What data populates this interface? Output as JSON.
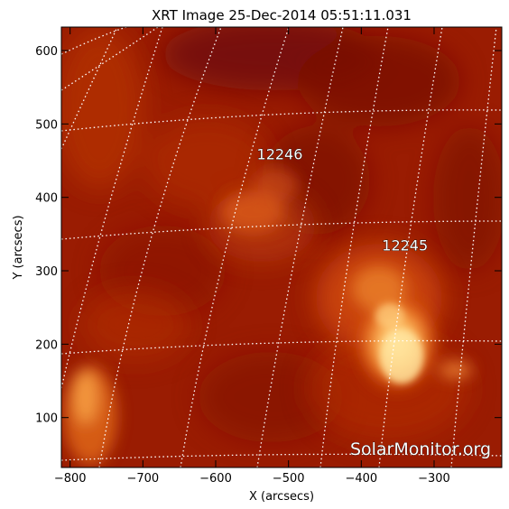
{
  "figure": {
    "title": "XRT Image 25-Dec-2014 05:51:11.031",
    "xlabel": "X (arcsecs)",
    "ylabel": "Y (arcsecs)",
    "watermark": "SolarMonitor.org"
  },
  "axes": {
    "xlim": [
      -812,
      -207
    ],
    "ylim": [
      32,
      632
    ],
    "x_ticks": [
      -800,
      -700,
      -600,
      -500,
      -400,
      -300
    ],
    "y_ticks": [
      100,
      200,
      300,
      400,
      500,
      600
    ],
    "x_tick_labels": [
      "−800",
      "−700",
      "−600",
      "−500",
      "−400",
      "−300"
    ],
    "y_tick_labels": [
      "100",
      "200",
      "300",
      "400",
      "500",
      "600"
    ]
  },
  "regions": [
    {
      "label": "12246",
      "x": -512,
      "y": 452
    },
    {
      "label": "12245",
      "x": -340,
      "y": 328
    }
  ],
  "colors": {
    "base": "#9a1c02",
    "dark": "#6a0d00",
    "bright": "#ffd27a",
    "grid": "#ffffff",
    "frame": "#000000"
  }
}
